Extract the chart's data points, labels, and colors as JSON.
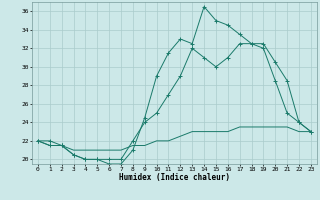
{
  "xlabel": "Humidex (Indice chaleur)",
  "bg_color": "#cce8e8",
  "line_color": "#1a7a6a",
  "grid_color": "#aacccc",
  "xlim": [
    -0.5,
    23.5
  ],
  "ylim": [
    19.5,
    37.0
  ],
  "yticks": [
    20,
    22,
    24,
    26,
    28,
    30,
    32,
    34,
    36
  ],
  "xticks": [
    0,
    1,
    2,
    3,
    4,
    5,
    6,
    7,
    8,
    9,
    10,
    11,
    12,
    13,
    14,
    15,
    16,
    17,
    18,
    19,
    20,
    21,
    22,
    23
  ],
  "series1_x": [
    0,
    1,
    2,
    3,
    4,
    5,
    6,
    7,
    8,
    9,
    10,
    11,
    12,
    13,
    14,
    15,
    16,
    17,
    18,
    19,
    20,
    21,
    22,
    23
  ],
  "series1_y": [
    22.0,
    21.5,
    21.5,
    21.0,
    21.0,
    21.0,
    21.0,
    21.0,
    21.5,
    21.5,
    22.0,
    22.0,
    22.5,
    23.0,
    23.0,
    23.0,
    23.0,
    23.5,
    23.5,
    23.5,
    23.5,
    23.5,
    23.0,
    23.0
  ],
  "series2_x": [
    0,
    1,
    2,
    3,
    4,
    5,
    6,
    7,
    8,
    9,
    10,
    11,
    12,
    13,
    14,
    15,
    16,
    17,
    18,
    19,
    20,
    21,
    22,
    23
  ],
  "series2_y": [
    22.0,
    22.0,
    21.5,
    20.5,
    20.0,
    20.0,
    20.0,
    20.0,
    22.0,
    24.0,
    25.0,
    27.0,
    29.0,
    32.0,
    31.0,
    30.0,
    31.0,
    32.5,
    32.5,
    32.5,
    30.5,
    28.5,
    24.0,
    23.0
  ],
  "series3_x": [
    0,
    1,
    2,
    3,
    4,
    5,
    6,
    7,
    8,
    9,
    10,
    11,
    12,
    13,
    14,
    15,
    16,
    17,
    18,
    19,
    20,
    21,
    22,
    23
  ],
  "series3_y": [
    22.0,
    21.5,
    21.5,
    20.5,
    20.0,
    20.0,
    19.5,
    19.5,
    21.0,
    24.5,
    29.0,
    31.5,
    33.0,
    32.5,
    36.5,
    35.0,
    34.5,
    33.5,
    32.5,
    32.0,
    28.5,
    25.0,
    24.0,
    23.0
  ]
}
